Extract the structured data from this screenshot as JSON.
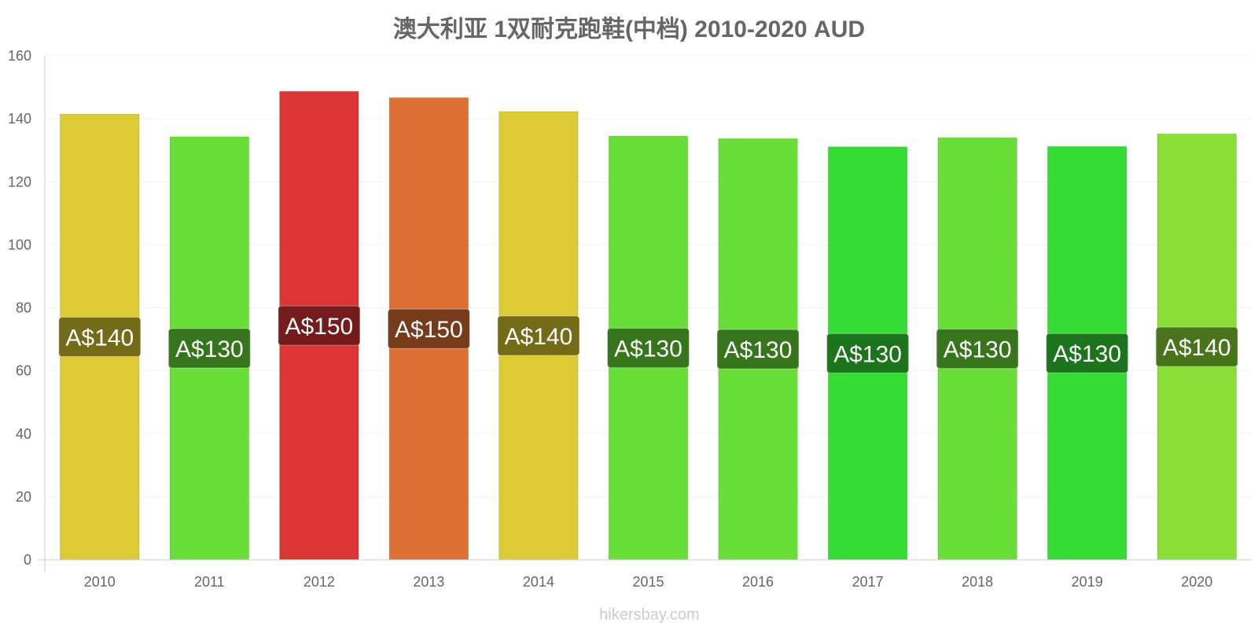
{
  "chart_data": {
    "type": "bar",
    "title": "澳大利亚 1双耐克跑鞋(中档) 2010-2020 AUD",
    "xlabel": "",
    "ylabel": "",
    "categories": [
      "2010",
      "2011",
      "2012",
      "2013",
      "2014",
      "2015",
      "2016",
      "2017",
      "2018",
      "2019",
      "2020"
    ],
    "values": [
      141.5,
      134.3,
      148.7,
      146.7,
      142.3,
      134.5,
      133.7,
      131.1,
      134.0,
      131.2,
      135.2
    ],
    "data_labels": [
      "A$140",
      "A$130",
      "A$150",
      "A$150",
      "A$140",
      "A$130",
      "A$130",
      "A$130",
      "A$130",
      "A$130",
      "A$140"
    ],
    "bar_colors": [
      "#dccb36",
      "#6ade38",
      "#dc3535",
      "#de7035",
      "#dccb36",
      "#6ade38",
      "#6ade38",
      "#35dc35",
      "#6ade38",
      "#35dc35",
      "#8ade35"
    ],
    "label_box_colors": [
      "#6e6517",
      "#356f1b",
      "#6e1a1a",
      "#6f381a",
      "#6e6517",
      "#356f1b",
      "#356f1b",
      "#1b6e1b",
      "#356f1b",
      "#1b6e1b",
      "#456f1a"
    ],
    "ylim": [
      0,
      160
    ],
    "yticks": [
      0,
      20,
      40,
      60,
      80,
      100,
      120,
      140,
      160
    ],
    "grid": true,
    "legend": "none"
  },
  "watermark": "hikersbay.com",
  "colors": {
    "title": "#666666",
    "tick_text": "#666666",
    "axis_line": "#cccccc",
    "grid_line": "#f2f2f2",
    "watermark": "#cccccc",
    "label_text": "#ffffff"
  }
}
